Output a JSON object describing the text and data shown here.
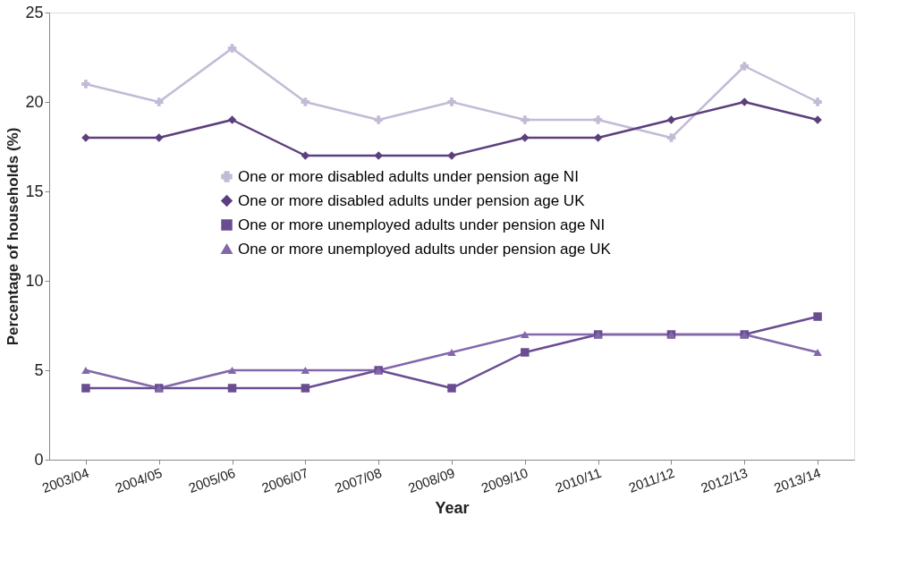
{
  "chart_data": {
    "type": "line",
    "xlabel": "Year",
    "ylabel": "Percentage of households (%)",
    "categories": [
      "2003/04",
      "2004/05",
      "2005/06",
      "2006/07",
      "2007/08",
      "2008/09",
      "2009/10",
      "2010/11",
      "2011/12",
      "2012/13",
      "2013/14"
    ],
    "series": [
      {
        "name": "One or more disabled adults under pension age NI",
        "color": "#c3bad6",
        "marker": "cross",
        "values": [
          21,
          20,
          23,
          20,
          19,
          20,
          19,
          19,
          18,
          22,
          20
        ]
      },
      {
        "name": "One or more disabled adults under pension age UK",
        "color": "#5c3f7d",
        "marker": "diamond",
        "values": [
          18,
          18,
          19,
          17,
          17,
          17,
          18,
          18,
          19,
          20,
          19
        ]
      },
      {
        "name": "One or more unemployed adults under pension age NI",
        "color": "#6a4c92",
        "marker": "square",
        "values": [
          4,
          4,
          4,
          4,
          5,
          4,
          6,
          7,
          7,
          7,
          8
        ]
      },
      {
        "name": "One or more unemployed adults under pension age UK",
        "color": "#8267ab",
        "marker": "triangle",
        "values": [
          5,
          4,
          5,
          5,
          5,
          6,
          7,
          7,
          7,
          7,
          6
        ]
      }
    ],
    "ylim": [
      0,
      25
    ],
    "yticks": [
      0,
      5,
      10,
      15,
      20,
      25
    ],
    "grid": false,
    "legend": "left",
    "line_style": "solid"
  }
}
